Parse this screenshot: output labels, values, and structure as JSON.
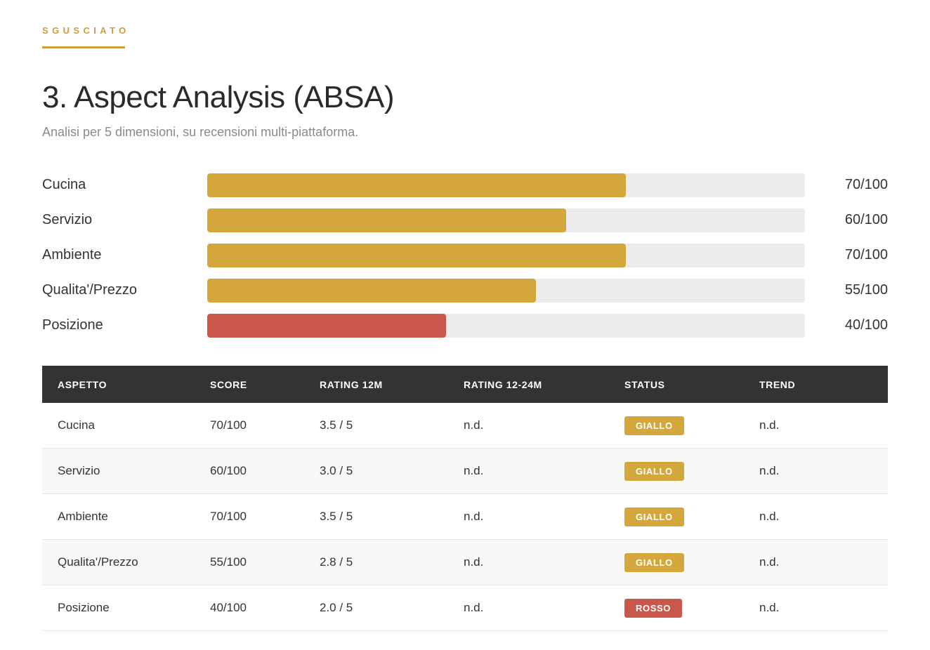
{
  "header": {
    "brand": "SGUSCIATO",
    "title": "3. Aspect Analysis (ABSA)",
    "subtitle": "Analisi per 5 dimensioni, su recensioni multi-piattaforma."
  },
  "colors": {
    "accent": "#d4a73c",
    "warning": "#c9574b",
    "track": "#ececec",
    "table_header": "#333333"
  },
  "bars": [
    {
      "label": "Cucina",
      "score": 70,
      "max": 100,
      "value_text": "70/100",
      "color": "#d4a73c"
    },
    {
      "label": "Servizio",
      "score": 60,
      "max": 100,
      "value_text": "60/100",
      "color": "#d4a73c"
    },
    {
      "label": "Ambiente",
      "score": 70,
      "max": 100,
      "value_text": "70/100",
      "color": "#d4a73c"
    },
    {
      "label": "Qualita'/Prezzo",
      "score": 55,
      "max": 100,
      "value_text": "55/100",
      "color": "#d4a73c"
    },
    {
      "label": "Posizione",
      "score": 40,
      "max": 100,
      "value_text": "40/100",
      "color": "#c9574b"
    }
  ],
  "table": {
    "columns": [
      "ASPETTO",
      "SCORE",
      "RATING 12M",
      "RATING 12-24M",
      "STATUS",
      "TREND"
    ],
    "rows": [
      {
        "aspetto": "Cucina",
        "score": "70/100",
        "rating_12m": "3.5 / 5",
        "rating_12_24m": "n.d.",
        "status": "GIALLO",
        "status_color": "#d4a73c",
        "trend": "n.d."
      },
      {
        "aspetto": "Servizio",
        "score": "60/100",
        "rating_12m": "3.0 / 5",
        "rating_12_24m": "n.d.",
        "status": "GIALLO",
        "status_color": "#d4a73c",
        "trend": "n.d."
      },
      {
        "aspetto": "Ambiente",
        "score": "70/100",
        "rating_12m": "3.5 / 5",
        "rating_12_24m": "n.d.",
        "status": "GIALLO",
        "status_color": "#d4a73c",
        "trend": "n.d."
      },
      {
        "aspetto": "Qualita'/Prezzo",
        "score": "55/100",
        "rating_12m": "2.8 / 5",
        "rating_12_24m": "n.d.",
        "status": "GIALLO",
        "status_color": "#d4a73c",
        "trend": "n.d."
      },
      {
        "aspetto": "Posizione",
        "score": "40/100",
        "rating_12m": "2.0 / 5",
        "rating_12_24m": "n.d.",
        "status": "ROSSO",
        "status_color": "#c9574b",
        "trend": "n.d."
      }
    ]
  }
}
